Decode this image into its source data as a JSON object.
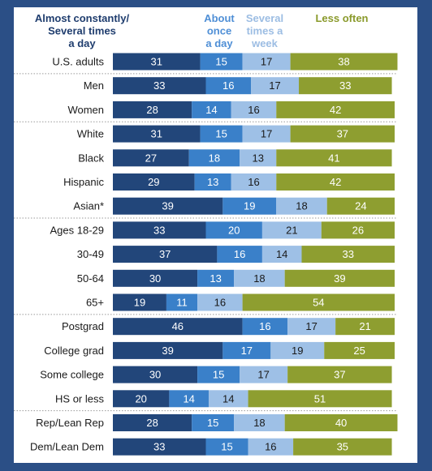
{
  "chart_data": {
    "type": "bar",
    "stacked": true,
    "orientation": "horizontal",
    "series_headers": [
      {
        "lines": [
          "Almost constantly/",
          "Several times",
          "a day"
        ],
        "color": "#1f3d6e"
      },
      {
        "lines": [
          "About",
          "once",
          "a day"
        ],
        "color": "#4f8fd6"
      },
      {
        "lines": [
          "Several",
          "times a",
          "week"
        ],
        "color": "#9cbde3"
      },
      {
        "lines": [
          "Less often"
        ],
        "color": "#8a9a2b"
      }
    ],
    "colors": [
      "#22467a",
      "#3a80c9",
      "#9ec0e6",
      "#8e9e30"
    ],
    "label_colors": [
      "#ffffff",
      "#ffffff",
      "#1a1a1a",
      "#ffffff"
    ],
    "categories": [
      "U.S. adults",
      "Men",
      "Women",
      "White",
      "Black",
      "Hispanic",
      "Asian*",
      "Ages 18-29",
      "30-49",
      "50-64",
      "65+",
      "Postgrad",
      "College grad",
      "Some college",
      "HS or less",
      "Rep/Lean Rep",
      "Dem/Lean Dem"
    ],
    "series": [
      {
        "values": [
          31,
          33,
          28,
          31,
          27,
          29,
          39,
          33,
          37,
          30,
          19,
          46,
          39,
          30,
          20,
          28,
          33
        ]
      },
      {
        "values": [
          15,
          16,
          14,
          15,
          18,
          13,
          19,
          20,
          16,
          13,
          11,
          16,
          17,
          15,
          14,
          15,
          15
        ]
      },
      {
        "values": [
          17,
          17,
          16,
          17,
          13,
          16,
          18,
          21,
          14,
          18,
          16,
          17,
          19,
          17,
          14,
          18,
          16
        ]
      },
      {
        "values": [
          38,
          33,
          42,
          37,
          41,
          42,
          24,
          26,
          33,
          39,
          54,
          21,
          25,
          37,
          51,
          40,
          35
        ]
      }
    ],
    "groups": [
      [
        0
      ],
      [
        1,
        2
      ],
      [
        3,
        4,
        5,
        6
      ],
      [
        7,
        8,
        9,
        10
      ],
      [
        11,
        12,
        13,
        14
      ],
      [
        15,
        16
      ]
    ]
  }
}
